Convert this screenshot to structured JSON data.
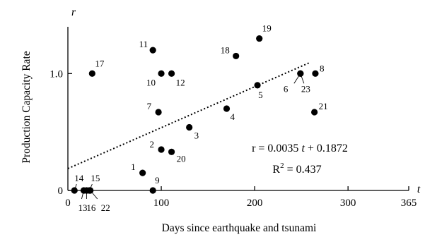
{
  "chart_data": {
    "type": "scatter",
    "title": "",
    "xlabel": "Days since earthquake and tsunami",
    "ylabel": "Production Capacity Rate",
    "x_axis_symbol": "t",
    "y_axis_symbol": "r",
    "xlim": [
      0,
      365
    ],
    "ylim": [
      0,
      1.4
    ],
    "x_ticks": [
      {
        "value": 0,
        "label": "0"
      },
      {
        "value": 100,
        "label": "100"
      },
      {
        "value": 200,
        "label": "200"
      },
      {
        "value": 300,
        "label": "300"
      },
      {
        "value": 365,
        "label": "365"
      }
    ],
    "y_ticks": [
      {
        "value": 0,
        "label": "0"
      },
      {
        "value": 1.0,
        "label": "1.0"
      }
    ],
    "grid": false,
    "legend": "none",
    "points": [
      {
        "label": "1",
        "x": 80,
        "y": 0.15
      },
      {
        "label": "2",
        "x": 100,
        "y": 0.35
      },
      {
        "label": "3",
        "x": 130,
        "y": 0.54
      },
      {
        "label": "4",
        "x": 170,
        "y": 0.7
      },
      {
        "label": "5",
        "x": 203,
        "y": 0.9
      },
      {
        "label": "6",
        "x": 249,
        "y": 1.0
      },
      {
        "label": "7",
        "x": 97,
        "y": 0.67
      },
      {
        "label": "8",
        "x": 265,
        "y": 1.0
      },
      {
        "label": "9",
        "x": 91,
        "y": 0.0
      },
      {
        "label": "10",
        "x": 100,
        "y": 1.0
      },
      {
        "label": "11",
        "x": 91,
        "y": 1.2
      },
      {
        "label": "12",
        "x": 111,
        "y": 1.0
      },
      {
        "label": "13",
        "x": 17,
        "y": 0.0
      },
      {
        "label": "14",
        "x": 7,
        "y": 0.0
      },
      {
        "label": "15",
        "x": 23,
        "y": 0.0
      },
      {
        "label": "16",
        "x": 20,
        "y": 0.0
      },
      {
        "label": "17",
        "x": 26,
        "y": 1.0
      },
      {
        "label": "18",
        "x": 180,
        "y": 1.15
      },
      {
        "label": "19",
        "x": 205,
        "y": 1.3
      },
      {
        "label": "20",
        "x": 111,
        "y": 0.33
      },
      {
        "label": "21",
        "x": 264,
        "y": 0.67
      },
      {
        "label": "22",
        "x": 24,
        "y": 0.0
      },
      {
        "label": "23",
        "x": 249,
        "y": 1.0
      }
    ],
    "trendline": {
      "style": "dotted",
      "slope": 0.0035,
      "intercept": 0.1872,
      "x_range": [
        0,
        260
      ],
      "equation_parts": [
        "r = 0.0035 ",
        "t",
        " + 0.1872"
      ],
      "r_squared_text": "R",
      "r_squared_sup": "2",
      "r_squared_value": " = 0.437"
    }
  }
}
